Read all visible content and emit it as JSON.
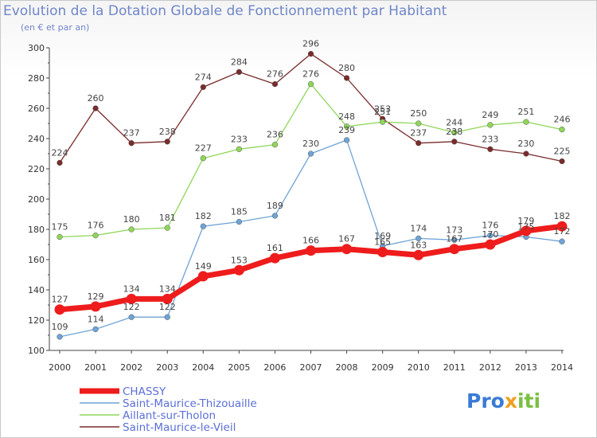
{
  "title": "Evolution de la Dotation Globale de Fonctionnement par Habitant",
  "subtitle": "(en € et par an)",
  "logo": {
    "p1": "Pro",
    "p2": "x",
    "p3": "iti"
  },
  "chart_data": {
    "type": "line",
    "x": [
      "2000",
      "2001",
      "2002",
      "2003",
      "2004",
      "2005",
      "2006",
      "2007",
      "2008",
      "2009",
      "2010",
      "2011",
      "2012",
      "2013",
      "2014"
    ],
    "ylim": [
      100,
      300
    ],
    "yticks": [
      100,
      120,
      140,
      160,
      180,
      200,
      220,
      240,
      260,
      280,
      300
    ],
    "grid": false,
    "legend": "bottom-left",
    "series": [
      {
        "name": "CHASSY",
        "color": "#ee1c1c",
        "values": [
          127,
          129,
          134,
          134,
          149,
          153,
          161,
          166,
          167,
          165,
          163,
          167,
          170,
          179,
          182
        ]
      },
      {
        "name": "Saint-Maurice-Thizouaille",
        "color": "#6fa3d6",
        "values": [
          109,
          114,
          122,
          122,
          182,
          185,
          189,
          230,
          239,
          169,
          174,
          173,
          176,
          175,
          172
        ]
      },
      {
        "name": "Aillant-sur-Tholon",
        "color": "#8fd65a",
        "values": [
          175,
          176,
          180,
          181,
          227,
          233,
          236,
          276,
          248,
          251,
          250,
          244,
          249,
          251,
          246
        ]
      },
      {
        "name": "Saint-Maurice-le-Vieil",
        "color": "#7a2b2b",
        "values": [
          224,
          260,
          237,
          238,
          274,
          284,
          276,
          296,
          280,
          253,
          237,
          238,
          233,
          230,
          225
        ]
      }
    ]
  }
}
